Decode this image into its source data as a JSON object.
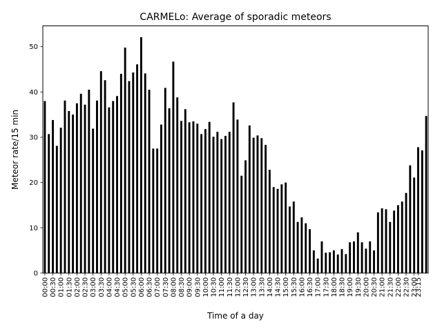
{
  "chart_data": {
    "type": "bar",
    "title": "CARMELo: Average of sporadic meteors",
    "xlabel": "Time of a day",
    "ylabel": "Meteor rate/15 min",
    "ylim": [
      0,
      54.6
    ],
    "yticks": [
      0,
      10,
      20,
      30,
      40,
      50
    ],
    "grid": false,
    "legend": "none",
    "bar_color": "#000000",
    "categories": [
      "00:00",
      "00:15",
      "00:30",
      "00:45",
      "01:00",
      "01:15",
      "01:30",
      "01:45",
      "02:00",
      "02:15",
      "02:30",
      "02:45",
      "03:00",
      "03:15",
      "03:30",
      "03:45",
      "04:00",
      "04:15",
      "04:30",
      "04:45",
      "05:00",
      "05:15",
      "05:30",
      "05:45",
      "06:00",
      "06:15",
      "06:30",
      "06:45",
      "07:00",
      "07:15",
      "07:30",
      "07:45",
      "08:00",
      "08:15",
      "08:30",
      "08:45",
      "09:00",
      "09:15",
      "09:30",
      "09:45",
      "10:00",
      "10:15",
      "10:30",
      "10:45",
      "11:00",
      "11:15",
      "11:30",
      "11:45",
      "12:00",
      "12:15",
      "12:30",
      "12:45",
      "13:00",
      "13:15",
      "13:30",
      "13:45",
      "14:00",
      "14:15",
      "14:30",
      "14:45",
      "15:00",
      "15:15",
      "15:30",
      "15:45",
      "16:00",
      "16:15",
      "16:30",
      "16:45",
      "17:00",
      "17:15",
      "17:30",
      "17:45",
      "18:00",
      "18:15",
      "18:30",
      "18:45",
      "19:00",
      "19:15",
      "19:30",
      "19:45",
      "20:00",
      "20:15",
      "20:30",
      "20:45",
      "21:00",
      "21:15",
      "21:30",
      "21:45",
      "22:00",
      "22:15",
      "22:30",
      "22:45",
      "23:00",
      "23:15",
      "23:30",
      "23:45"
    ],
    "tick_labels": [
      "00:00",
      "00:30",
      "01:00",
      "01:30",
      "02:00",
      "02:30",
      "03:00",
      "03:30",
      "04:00",
      "04:30",
      "05:00",
      "05:30",
      "06:00",
      "06:30",
      "07:00",
      "07:30",
      "08:00",
      "08:30",
      "09:00",
      "09:30",
      "10:00",
      "10:30",
      "11:00",
      "11:30",
      "12:00",
      "12:30",
      "13:00",
      "13:30",
      "14:00",
      "14:30",
      "15:00",
      "15:30",
      "16:00",
      "16:30",
      "17:00",
      "17:30",
      "18:00",
      "18:30",
      "19:00",
      "19:30",
      "20:00",
      "20:30",
      "21:00",
      "21:30",
      "22:00",
      "22:30",
      "23:00",
      "23:15"
    ],
    "values": [
      38.0,
      30.7,
      33.8,
      28.1,
      32.1,
      38.1,
      35.8,
      35.0,
      37.5,
      39.6,
      37.2,
      40.5,
      31.9,
      38.1,
      44.6,
      42.6,
      36.6,
      38.0,
      39.1,
      44.0,
      49.8,
      42.4,
      44.3,
      46.1,
      52.1,
      44.1,
      40.5,
      27.5,
      27.5,
      32.8,
      40.9,
      36.4,
      46.7,
      38.8,
      33.6,
      36.2,
      33.3,
      33.5,
      33.0,
      30.7,
      31.8,
      33.4,
      30.1,
      31.2,
      29.6,
      30.3,
      31.2,
      37.7,
      33.9,
      21.5,
      24.9,
      32.6,
      29.9,
      30.4,
      29.8,
      28.3,
      22.8,
      19.0,
      18.6,
      19.6,
      20.0,
      14.7,
      15.8,
      11.3,
      12.3,
      11.0,
      9.7,
      5.0,
      3.2,
      7.0,
      4.5,
      4.6,
      5.0,
      4.1,
      5.3,
      4.2,
      6.8,
      7.0,
      9.0,
      6.8,
      5.4,
      7.0,
      5.0,
      13.4,
      14.3,
      14.1,
      11.3,
      13.8,
      15.0,
      15.8,
      17.7,
      23.8,
      21.1,
      27.8,
      27.1,
      34.7
    ]
  }
}
